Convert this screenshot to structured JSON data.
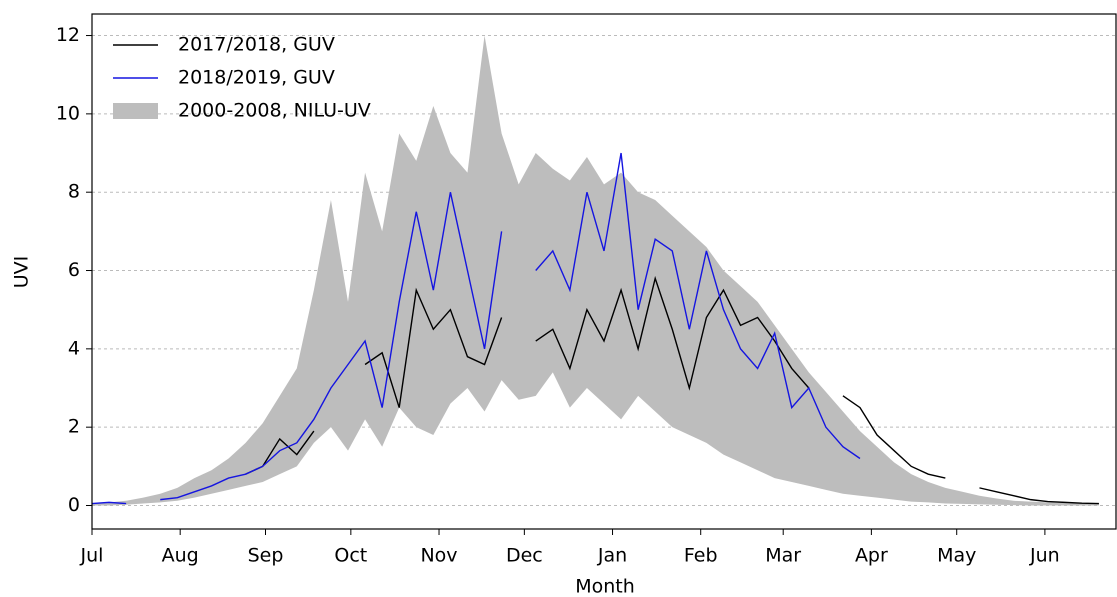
{
  "chart_data": {
    "type": "line",
    "xlabel": "Month",
    "ylabel": "UVI",
    "xlim": [
      0,
      360
    ],
    "ylim": [
      -0.6,
      12.55
    ],
    "xticks": [
      {
        "value": 0,
        "label": "Jul"
      },
      {
        "value": 31,
        "label": "Aug"
      },
      {
        "value": 61,
        "label": "Sep"
      },
      {
        "value": 91,
        "label": "Oct"
      },
      {
        "value": 122,
        "label": "Nov"
      },
      {
        "value": 152,
        "label": "Dec"
      },
      {
        "value": 183,
        "label": "Jan"
      },
      {
        "value": 214,
        "label": "Feb"
      },
      {
        "value": 243,
        "label": "Mar"
      },
      {
        "value": 274,
        "label": "Apr"
      },
      {
        "value": 304,
        "label": "May"
      },
      {
        "value": 335,
        "label": "Jun"
      }
    ],
    "yticks": [
      0,
      2,
      4,
      6,
      8,
      10,
      12
    ],
    "grid": true,
    "legend": "upper left",
    "x": [
      0,
      6,
      12,
      18,
      24,
      30,
      36,
      42,
      48,
      54,
      60,
      66,
      72,
      78,
      84,
      90,
      96,
      102,
      108,
      114,
      120,
      126,
      132,
      138,
      144,
      150,
      156,
      162,
      168,
      174,
      180,
      186,
      192,
      198,
      204,
      210,
      216,
      222,
      228,
      234,
      240,
      246,
      252,
      258,
      264,
      270,
      276,
      282,
      288,
      294,
      300,
      306,
      312,
      318,
      324,
      330,
      336,
      342,
      348,
      354
    ],
    "band": {
      "name": "2000-2008, NILU-UV",
      "color": "#bdbdbd",
      "upper": [
        0.05,
        0.08,
        0.12,
        0.2,
        0.3,
        0.45,
        0.7,
        0.9,
        1.2,
        1.6,
        2.1,
        2.8,
        3.5,
        5.5,
        7.8,
        5.2,
        8.5,
        7.0,
        9.5,
        8.8,
        10.2,
        9.0,
        8.5,
        12.0,
        9.5,
        8.2,
        9.0,
        8.6,
        8.3,
        8.9,
        8.2,
        8.5,
        8.0,
        7.8,
        7.4,
        7.0,
        6.6,
        6.0,
        5.6,
        5.2,
        4.6,
        4.0,
        3.4,
        2.9,
        2.4,
        1.9,
        1.5,
        1.1,
        0.8,
        0.6,
        0.45,
        0.35,
        0.25,
        0.18,
        0.12,
        0.1,
        0.08,
        0.06,
        0.05,
        0.05
      ],
      "lower": [
        0,
        0,
        0.02,
        0.05,
        0.08,
        0.12,
        0.2,
        0.3,
        0.4,
        0.5,
        0.6,
        0.8,
        1.0,
        1.6,
        2.0,
        1.4,
        2.2,
        1.5,
        2.5,
        2.0,
        1.8,
        2.6,
        3.0,
        2.4,
        3.2,
        2.7,
        2.8,
        3.4,
        2.5,
        3.0,
        2.6,
        2.2,
        2.8,
        2.4,
        2.0,
        1.8,
        1.6,
        1.3,
        1.1,
        0.9,
        0.7,
        0.6,
        0.5,
        0.4,
        0.3,
        0.25,
        0.2,
        0.15,
        0.1,
        0.08,
        0.05,
        0.04,
        0.03,
        0.02,
        0.01,
        0,
        0,
        0,
        0,
        0
      ]
    },
    "series": [
      {
        "name": "2017/2018, GUV",
        "color": "#000000",
        "values": [
          null,
          null,
          null,
          null,
          null,
          null,
          null,
          null,
          null,
          0.8,
          1.0,
          1.7,
          1.3,
          1.9,
          null,
          null,
          3.6,
          3.9,
          2.5,
          5.5,
          4.5,
          5.0,
          3.8,
          3.6,
          4.8,
          null,
          4.2,
          4.5,
          3.5,
          5.0,
          4.2,
          5.5,
          4.0,
          5.8,
          4.5,
          3.0,
          4.8,
          5.5,
          4.6,
          4.8,
          4.2,
          3.5,
          3.0,
          null,
          2.8,
          2.5,
          1.8,
          1.4,
          1.0,
          0.8,
          0.7,
          null,
          0.45,
          0.35,
          0.25,
          0.15,
          0.1,
          0.08,
          0.06,
          0.05
        ]
      },
      {
        "name": "2018/2019, GUV",
        "color": "#1515e0",
        "values": [
          0.05,
          0.08,
          0.05,
          null,
          0.15,
          0.2,
          0.35,
          0.5,
          0.7,
          0.8,
          1.0,
          1.4,
          1.6,
          2.2,
          3.0,
          3.6,
          4.2,
          2.5,
          5.2,
          7.5,
          5.5,
          8.0,
          6.0,
          4.0,
          7.0,
          null,
          6.0,
          6.5,
          5.5,
          8.0,
          6.5,
          9.0,
          5.0,
          6.8,
          6.5,
          4.5,
          6.5,
          5.0,
          4.0,
          3.5,
          4.4,
          2.5,
          3.0,
          2.0,
          1.5,
          1.2,
          null,
          null,
          null,
          null,
          null,
          null,
          null,
          null,
          null,
          null,
          null,
          null,
          null,
          null
        ]
      }
    ]
  }
}
